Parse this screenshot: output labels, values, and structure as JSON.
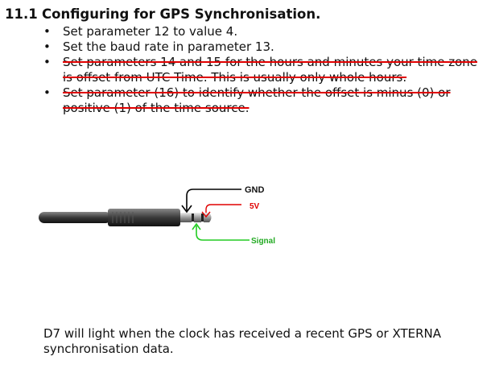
{
  "section": {
    "number": "11.1",
    "title": "Configuring for GPS Synchronisation."
  },
  "steps": [
    {
      "text": "Set parameter 12 to value 4.",
      "struck": false
    },
    {
      "text": "Set the baud rate in parameter 13.",
      "struck": false
    },
    {
      "text": "Set parameters 14 and 15 for the hours and minutes your time zone is offset from UTC Time. This is usually only whole hours.",
      "struck": true
    },
    {
      "text": "Set parameter (16) to identify whether the offset is minus (0) or positive (1) of the time source.",
      "struck": true
    }
  ],
  "diagram": {
    "labels": {
      "gnd": "GND",
      "v5": "5V",
      "signal": "Signal"
    },
    "colors": {
      "gnd": "#000000",
      "v5": "#e00000",
      "signal": "#22cc22"
    }
  },
  "footer": "D7 will light when the clock has received a recent GPS or XTERNA synchronisation data."
}
